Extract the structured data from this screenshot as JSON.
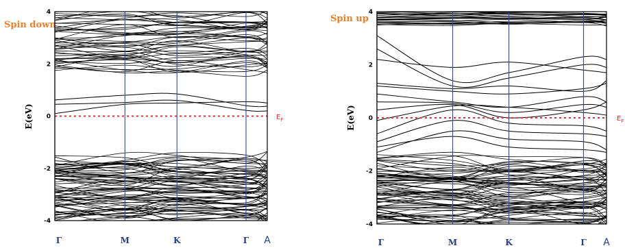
{
  "colors": {
    "spin_label": "#f07f2a",
    "fermi": "#e8322e",
    "kpath_line": "#3344aa",
    "kpath_label": "#2a3a8c",
    "band": "#000000",
    "frame": "#000000"
  },
  "chart_data": [
    {
      "type": "line",
      "panel": "spin-down",
      "title": "Spin down",
      "ylabel": "E(eV)",
      "ylim": [
        -4,
        4
      ],
      "yticks": [
        -4,
        -2,
        0,
        2,
        4
      ],
      "ytick_labels": [
        "-4",
        "-2",
        "0",
        "2",
        "4"
      ],
      "kpoints": [
        {
          "label": "Γ",
          "x": 0.0
        },
        {
          "label": "M",
          "x": 0.33
        },
        {
          "label": "K",
          "x": 0.575
        },
        {
          "label": "Γ",
          "x": 0.9
        },
        {
          "label": "A",
          "x": 1.0
        }
      ],
      "fermi_level": 0,
      "fermi_label": "E",
      "fermi_label_sub": "F",
      "band_groups": {
        "valence": {
          "range": [
            -4.0,
            -1.6
          ]
        },
        "conduction": {
          "range": [
            1.7,
            4.0
          ]
        },
        "gap_bands": [
          {
            "x": [
              0.0,
              0.33,
              0.575,
              0.9,
              1.0
            ],
            "y": [
              0.62,
              0.8,
              0.85,
              0.4,
              0.38
            ]
          },
          {
            "x": [
              0.0,
              0.33,
              0.575,
              0.9,
              1.0
            ],
            "y": [
              0.45,
              0.52,
              0.6,
              0.22,
              0.2
            ]
          },
          {
            "x": [
              0.0,
              0.33,
              0.575,
              0.9,
              1.0
            ],
            "y": [
              0.1,
              0.45,
              0.5,
              0.55,
              0.5
            ]
          }
        ]
      }
    },
    {
      "type": "line",
      "panel": "spin-up",
      "title": "Spin up",
      "ylabel": "E(eV)",
      "ylim": [
        -4,
        4
      ],
      "yticks": [
        -4,
        -2,
        0,
        2,
        4
      ],
      "ytick_labels": [
        "-4",
        "-2",
        "0",
        "2",
        "4"
      ],
      "kpoints": [
        {
          "label": "Γ",
          "x": 0.0
        },
        {
          "label": "M",
          "x": 0.33
        },
        {
          "label": "K",
          "x": 0.575
        },
        {
          "label": "Γ",
          "x": 0.9
        },
        {
          "label": "A",
          "x": 1.0
        }
      ],
      "fermi_level": 0,
      "fermi_label": "E",
      "fermi_label_sub": "F",
      "band_groups": {
        "valence": {
          "range": [
            -4.0,
            -1.6
          ]
        },
        "conduction_top": {
          "range": [
            3.5,
            4.0
          ]
        },
        "gap_bands": [
          {
            "x": [
              0.0,
              0.33,
              0.575,
              0.9,
              1.0
            ],
            "y": [
              3.1,
              1.4,
              1.7,
              2.3,
              2.2
            ]
          },
          {
            "x": [
              0.0,
              0.33,
              0.575,
              0.9,
              1.0
            ],
            "y": [
              2.6,
              1.2,
              1.5,
              2.0,
              1.9
            ]
          },
          {
            "x": [
              0.0,
              0.33,
              0.575,
              0.9,
              1.0
            ],
            "y": [
              2.2,
              1.9,
              2.1,
              1.8,
              1.7
            ]
          },
          {
            "x": [
              0.0,
              0.33,
              0.575,
              0.9,
              1.0
            ],
            "y": [
              1.3,
              1.1,
              1.2,
              1.0,
              1.4
            ]
          },
          {
            "x": [
              0.0,
              0.33,
              0.575,
              0.9,
              1.0
            ],
            "y": [
              1.2,
              1.0,
              0.9,
              1.1,
              1.3
            ]
          },
          {
            "x": [
              0.0,
              0.33,
              0.575,
              0.9,
              1.0
            ],
            "y": [
              0.9,
              0.6,
              0.4,
              0.8,
              0.6
            ]
          },
          {
            "x": [
              0.0,
              0.33,
              0.575,
              0.9,
              1.0
            ],
            "y": [
              0.6,
              0.55,
              0.2,
              0.5,
              0.4
            ]
          },
          {
            "x": [
              0.0,
              0.33,
              0.575,
              0.9,
              1.0
            ],
            "y": [
              0.3,
              0.5,
              0.0,
              0.3,
              0.6
            ]
          },
          {
            "x": [
              0.0,
              0.33,
              0.575,
              0.9,
              1.0
            ],
            "y": [
              -0.1,
              0.45,
              0.4,
              0.2,
              0.1
            ]
          },
          {
            "x": [
              0.0,
              0.33,
              0.575,
              0.9,
              1.0
            ],
            "y": [
              -0.6,
              0.3,
              -0.2,
              -0.3,
              -0.5
            ]
          },
          {
            "x": [
              0.0,
              0.33,
              0.575,
              0.9,
              1.0
            ],
            "y": [
              -0.9,
              -0.1,
              -0.5,
              -0.6,
              -0.7
            ]
          },
          {
            "x": [
              0.0,
              0.33,
              0.575,
              0.9,
              1.0
            ],
            "y": [
              -1.3,
              -0.5,
              -0.8,
              -0.9,
              -1.2
            ]
          },
          {
            "x": [
              0.0,
              0.33,
              0.575,
              0.9,
              1.0
            ],
            "y": [
              -1.1,
              -0.7,
              -1.1,
              -1.2,
              -1.3
            ]
          }
        ]
      }
    }
  ]
}
